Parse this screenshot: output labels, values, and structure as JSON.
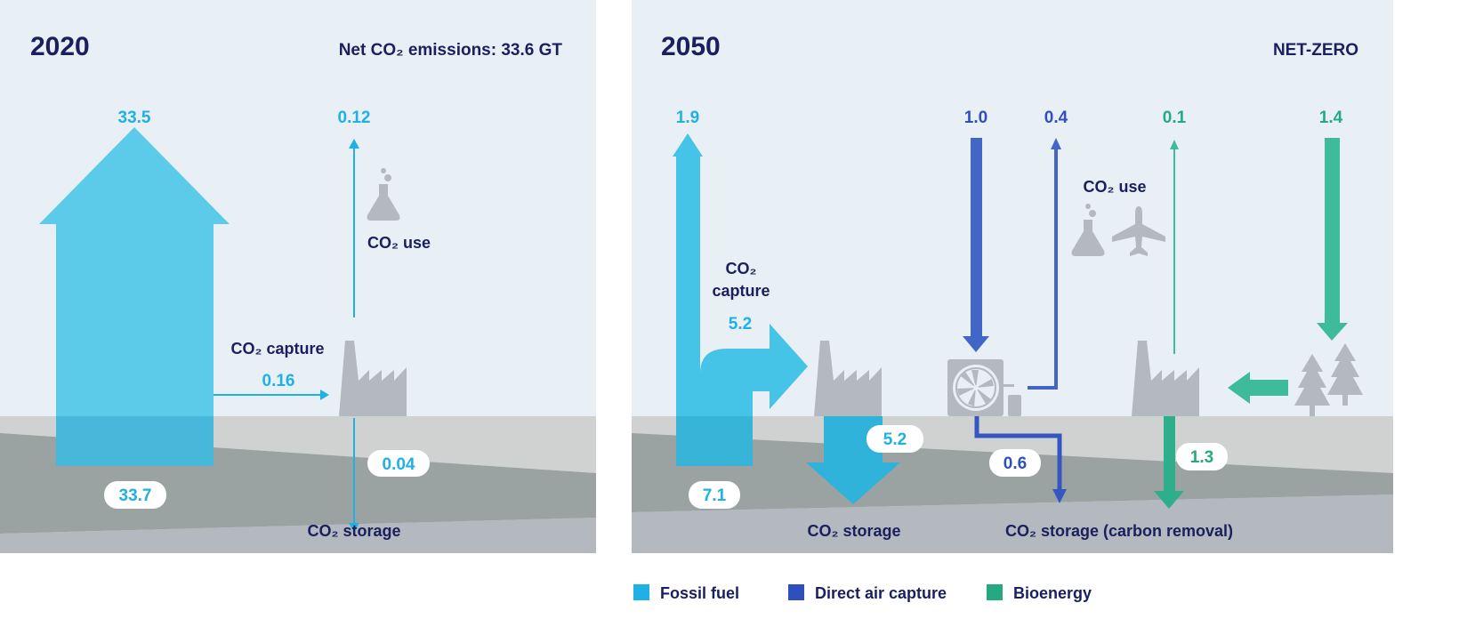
{
  "panel_2020": {
    "year": "2020",
    "headline": "Net CO₂ emissions: 33.6 GT",
    "emitted": "33.5",
    "use": "0.12",
    "capture": "0.16",
    "storage": "0.04",
    "source": "33.7",
    "use_label": "CO₂ use",
    "capture_label": "CO₂ capture",
    "storage_label": "CO₂ storage"
  },
  "panel_2050": {
    "year": "2050",
    "headline": "NET-ZERO",
    "fossil_emitted": "1.9",
    "fossil_capture": "5.2",
    "fossil_storage": "5.2",
    "fossil_source": "7.1",
    "dac_in": "1.0",
    "dac_use": "0.4",
    "dac_storage": "0.6",
    "bio_use": "0.1",
    "bio_in": "1.4",
    "bio_storage": "1.3",
    "capture_label_1": "CO₂",
    "capture_label_2": "capture",
    "use_label": "CO₂ use",
    "storage_label": "CO₂ storage",
    "removal_label": "CO₂ storage (carbon removal)"
  },
  "colors": {
    "fossil_fuel": "#1fb1e5",
    "direct_air_capture": "#2f4fbf",
    "bioenergy": "#24a982",
    "text": "#1a1f5e",
    "sky": "#e8f0f6"
  },
  "legend": [
    {
      "label": "Fossil fuel",
      "color": "#1fb1e5"
    },
    {
      "label": "Direct air capture",
      "color": "#2f4fbf"
    },
    {
      "label": "Bioenergy",
      "color": "#24a982"
    }
  ]
}
